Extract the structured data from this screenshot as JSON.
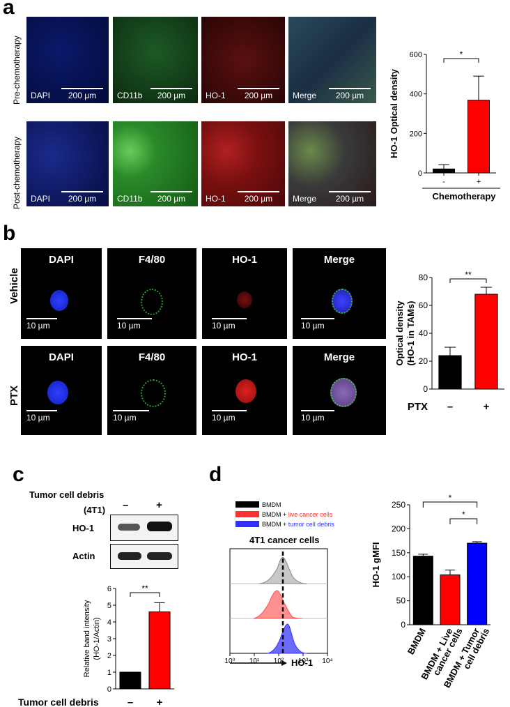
{
  "panel_a": {
    "letter": "a",
    "row_labels": [
      "Pre-chemotherapy",
      "Post-chemotherapy"
    ],
    "channels": [
      "DAPI",
      "CD11b",
      "HO-1",
      "Merge"
    ],
    "scale_bar": "200 µm"
  },
  "panel_b": {
    "letter": "b",
    "row_labels": [
      "Vehicle",
      "PTX"
    ],
    "channels": [
      "DAPI",
      "F4/80",
      "HO-1",
      "Merge"
    ],
    "scale_bar": "10 µm"
  },
  "panel_c": {
    "letter": "c",
    "header_line1": "Tumor cell debris",
    "header_line2": "(4T1)",
    "minus": "–",
    "plus": "+",
    "blot_labels": [
      "HO-1",
      "Actin"
    ]
  },
  "panel_d": {
    "letter": "d",
    "hist_legend": [
      "BMDM",
      "BMDM + live cancer cells",
      "BMDM + tumor cell debris"
    ],
    "hist_legend_colors": [
      "#000000",
      "#ff3030",
      "#3030ff"
    ],
    "hist_title": "4T1 cancer cells",
    "hist_xticks": [
      "10⁰",
      "10¹",
      "10²",
      "10³",
      "10⁴"
    ],
    "hist_xlabel": "HO-1"
  },
  "chart_data": [
    {
      "type": "bar",
      "panel": "a",
      "categories": [
        "-",
        "+"
      ],
      "values": [
        20,
        368
      ],
      "errors": [
        22,
        122
      ],
      "colors": [
        "#000000",
        "#ff0000"
      ],
      "ylabel": "HO-1 Optical density",
      "xlabel": "Chemotherapy",
      "ylim": [
        0,
        600
      ],
      "yticks": [
        0,
        200,
        400,
        600
      ],
      "significance": "*"
    },
    {
      "type": "bar",
      "panel": "b",
      "categories": [
        "–",
        "+"
      ],
      "values": [
        24,
        68
      ],
      "errors": [
        6,
        5
      ],
      "colors": [
        "#000000",
        "#ff0000"
      ],
      "ylabel": "Optical density (HO-1 in TAMs)",
      "xlabel": "PTX",
      "ylim": [
        0,
        80
      ],
      "yticks": [
        0,
        20,
        40,
        60,
        80
      ],
      "significance": "**"
    },
    {
      "type": "bar",
      "panel": "c",
      "categories": [
        "–",
        "+"
      ],
      "values": [
        1,
        4.6
      ],
      "errors": [
        0,
        0.55
      ],
      "colors": [
        "#000000",
        "#ff0000"
      ],
      "ylabel": "Relative band intensity (HO-1/Actin)",
      "xlabel": "Tumor cell debris",
      "ylim": [
        0,
        6
      ],
      "yticks": [
        0,
        1,
        2,
        3,
        4,
        5,
        6
      ],
      "significance": "**"
    },
    {
      "type": "bar",
      "panel": "d",
      "categories": [
        "BMDM",
        "BMDM + Live cancer cells",
        "BMDM + Tumor cell debris"
      ],
      "values": [
        143,
        104,
        170
      ],
      "errors": [
        4,
        10,
        3
      ],
      "colors": [
        "#000000",
        "#ff0000",
        "#0000ff"
      ],
      "ylabel": "HO-1 gMFI",
      "xlabel": "",
      "ylim": [
        0,
        250
      ],
      "yticks": [
        0,
        50,
        100,
        150,
        200,
        250
      ],
      "significance": [
        "*",
        "*"
      ]
    }
  ]
}
